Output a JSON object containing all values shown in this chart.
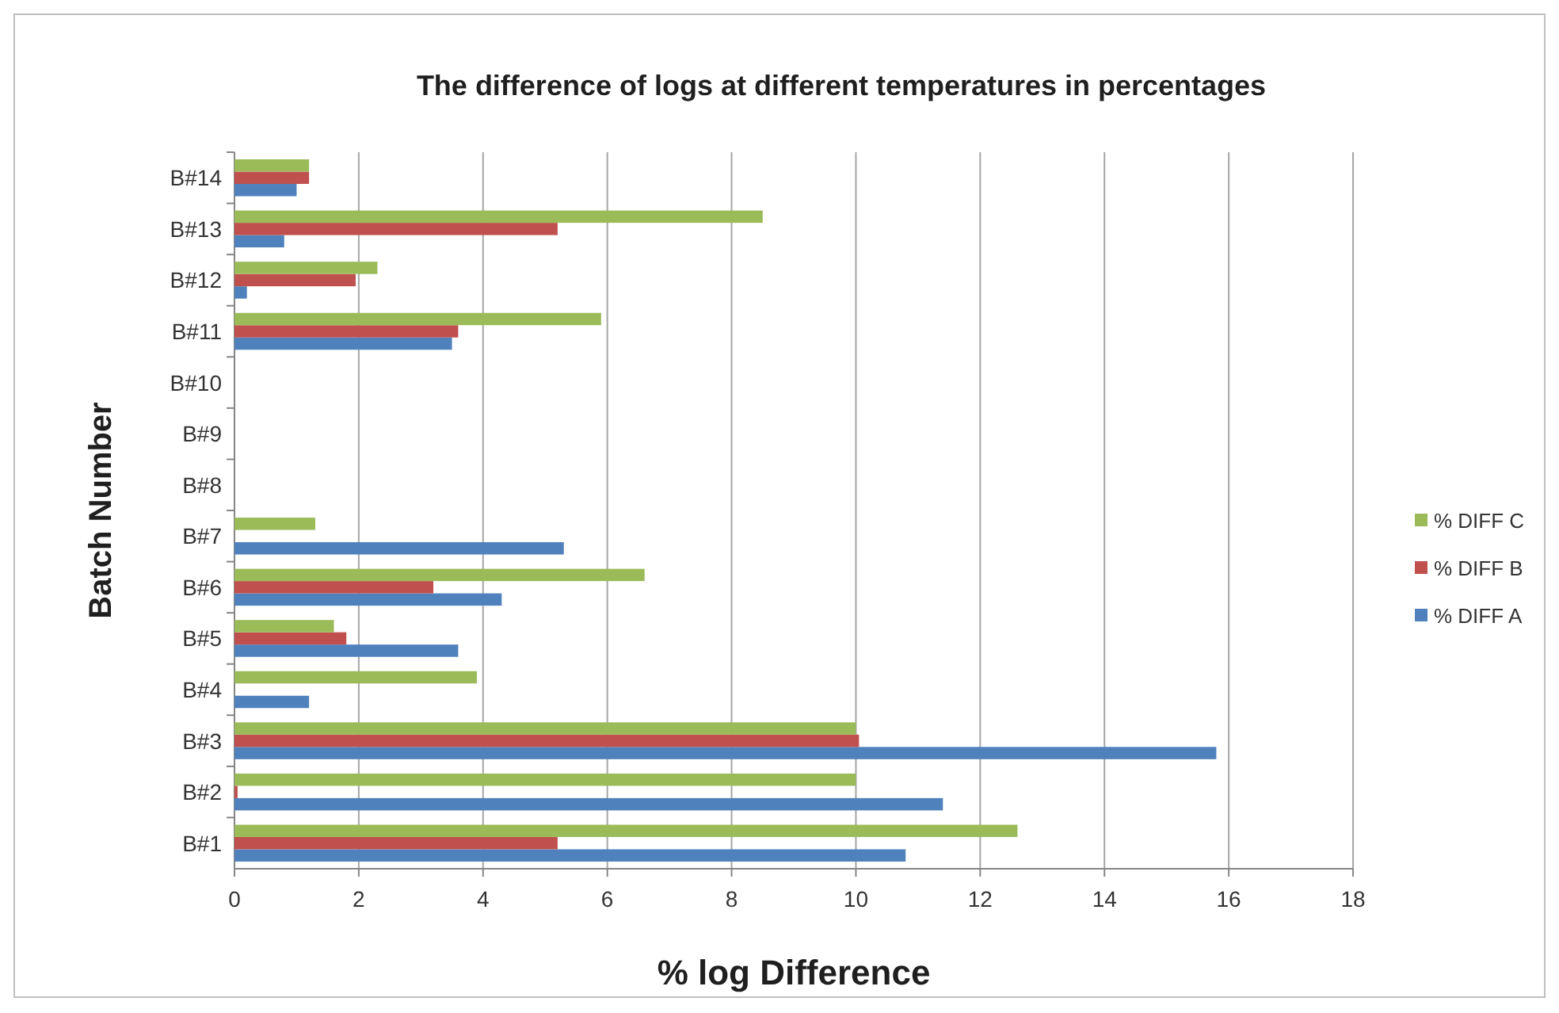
{
  "chart_data": {
    "type": "bar",
    "orientation": "horizontal",
    "title": "The difference of  logs at different temperatures in percentages",
    "xlabel": "% log Difference",
    "ylabel": "Batch Number",
    "categories": [
      "B#14",
      "B#13",
      "B#12",
      "B#11",
      "B#10",
      "B#9",
      "B#8",
      "B#7",
      "B#6",
      "B#5",
      "B#4",
      "B#3",
      "B#2",
      "B#1"
    ],
    "series": [
      {
        "name": "% DIFF A",
        "color": "#4f81bd",
        "values": [
          1.0,
          0.8,
          0.2,
          3.5,
          null,
          null,
          null,
          5.3,
          4.3,
          3.6,
          1.2,
          15.8,
          11.4,
          10.8
        ]
      },
      {
        "name": "% DIFF B",
        "color": "#c0504d",
        "values": [
          1.2,
          5.2,
          1.95,
          3.6,
          null,
          null,
          null,
          null,
          3.2,
          1.8,
          null,
          10.05,
          0.05,
          5.2
        ]
      },
      {
        "name": "% DIFF C",
        "color": "#9bbb59",
        "values": [
          1.2,
          8.5,
          2.3,
          5.9,
          null,
          null,
          null,
          1.3,
          6.6,
          1.6,
          3.9,
          10.0,
          10.0,
          12.6
        ]
      }
    ],
    "xlim": [
      0,
      18
    ],
    "xticks": [
      0,
      2,
      4,
      6,
      8,
      10,
      12,
      14,
      16,
      18
    ],
    "grid": "x",
    "legend": "right"
  }
}
